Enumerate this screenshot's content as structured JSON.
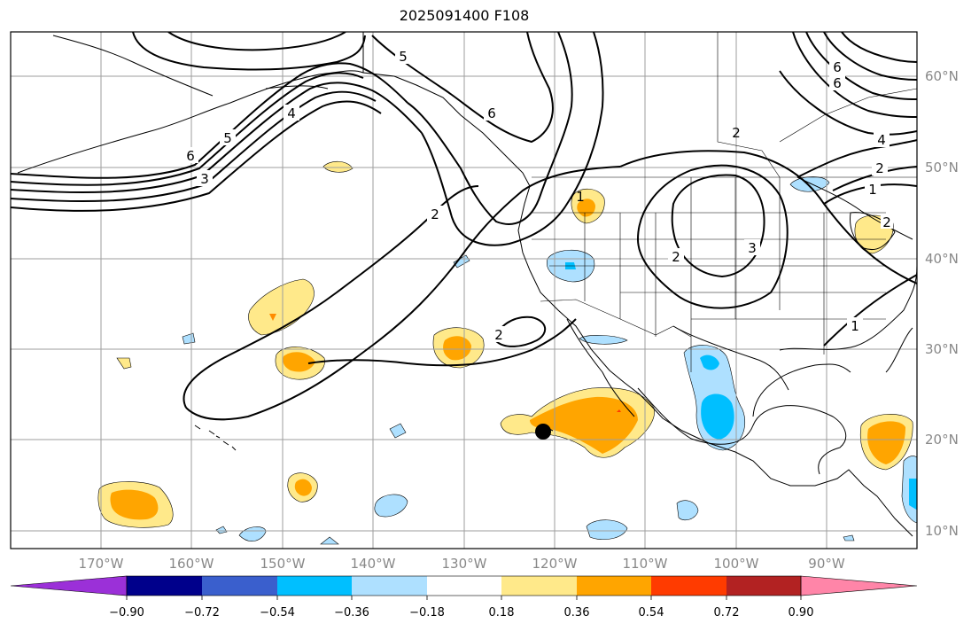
{
  "title": "2025091400 F108",
  "lat_labels": [
    "60°N",
    "50°N",
    "40°N",
    "30°N",
    "20°N",
    "10°N"
  ],
  "lon_labels": [
    "170°W",
    "160°W",
    "150°W",
    "140°W",
    "130°W",
    "120°W",
    "110°W",
    "100°W",
    "90°W"
  ],
  "colorbar": {
    "ticks": [
      "−0.90",
      "−0.72",
      "−0.54",
      "−0.36",
      "−0.18",
      "0.18",
      "0.36",
      "0.54",
      "0.72",
      "0.90"
    ],
    "colors": [
      "#9b30d8",
      "#00008b",
      "#3a5fcd",
      "#00bfff",
      "#aee0ff",
      "#ffffff",
      "#ffe98a",
      "#ffa500",
      "#ff3b00",
      "#b22222",
      "#ff85a8"
    ]
  },
  "contour_labels": [
    "5",
    "6",
    "4",
    "5",
    "6",
    "3",
    "2",
    "2",
    "2",
    "1",
    "3",
    "2",
    "1",
    "2",
    "4",
    "6",
    "6",
    "1",
    "2"
  ],
  "colors": {
    "axis": "#000000",
    "grid": "#9e9e9e",
    "tick_text": "#888888"
  }
}
